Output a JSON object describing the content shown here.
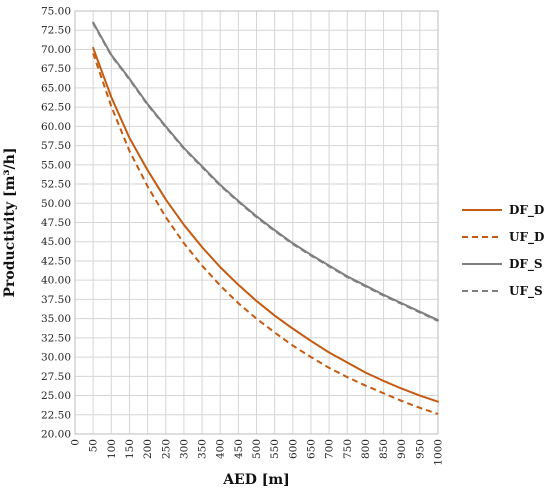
{
  "chart_data": {
    "type": "line",
    "xlabel": "AED [m]",
    "ylabel": "Productivity [m³/h]",
    "xlim": [
      0,
      1000
    ],
    "ylim": [
      20,
      75
    ],
    "x_ticks": [
      0,
      50,
      100,
      150,
      200,
      250,
      300,
      350,
      400,
      450,
      500,
      550,
      600,
      650,
      700,
      750,
      800,
      850,
      900,
      950,
      1000
    ],
    "y_ticks": [
      20.0,
      22.5,
      25.0,
      27.5,
      30.0,
      32.5,
      35.0,
      37.5,
      40.0,
      42.5,
      45.0,
      47.5,
      50.0,
      52.5,
      55.0,
      57.5,
      60.0,
      62.5,
      65.0,
      67.5,
      70.0,
      72.5,
      75.0
    ],
    "y_tick_labels": [
      "20.00",
      "22.50",
      "25.00",
      "27.50",
      "30.00",
      "32.50",
      "35.00",
      "37.50",
      "40.00",
      "42.50",
      "45.00",
      "47.50",
      "50.00",
      "52.50",
      "55.00",
      "57.50",
      "60.00",
      "62.50",
      "65.00",
      "67.50",
      "70.00",
      "72.50",
      "75.00"
    ],
    "grid": true,
    "legend_position": "right",
    "x": [
      50,
      100,
      150,
      200,
      250,
      300,
      350,
      400,
      450,
      500,
      550,
      600,
      650,
      700,
      750,
      800,
      850,
      900,
      950,
      1000
    ],
    "series": [
      {
        "name": "DF_D",
        "color": "#c55a11",
        "dash": "solid",
        "values": [
          70.2,
          63.8,
          58.5,
          54.3,
          50.5,
          47.2,
          44.3,
          41.7,
          39.4,
          37.3,
          35.4,
          33.7,
          32.1,
          30.6,
          29.3,
          28.0,
          26.9,
          25.9,
          25.0,
          24.2
        ]
      },
      {
        "name": "UF_D",
        "color": "#c55a11",
        "dash": "dashed",
        "values": [
          69.5,
          62.6,
          56.8,
          52.2,
          48.2,
          44.8,
          41.9,
          39.3,
          37.0,
          35.0,
          33.2,
          31.5,
          30.0,
          28.6,
          27.4,
          26.3,
          25.3,
          24.3,
          23.4,
          22.6
        ]
      },
      {
        "name": "DF_S",
        "color": "#7f7f7f",
        "dash": "solid",
        "values": [
          73.5,
          69.3,
          66.2,
          62.9,
          60.0,
          57.2,
          54.8,
          52.4,
          50.3,
          48.3,
          46.5,
          44.8,
          43.3,
          41.9,
          40.5,
          39.3,
          38.1,
          37.0,
          35.9,
          34.8
        ]
      },
      {
        "name": "UF_S",
        "color": "#7f7f7f",
        "dash": "dashed",
        "values": [
          73.4,
          69.2,
          66.1,
          62.8,
          59.9,
          57.1,
          54.7,
          52.3,
          50.2,
          48.2,
          46.4,
          44.7,
          43.2,
          41.8,
          40.4,
          39.2,
          38.0,
          36.9,
          35.8,
          34.7
        ]
      }
    ]
  }
}
